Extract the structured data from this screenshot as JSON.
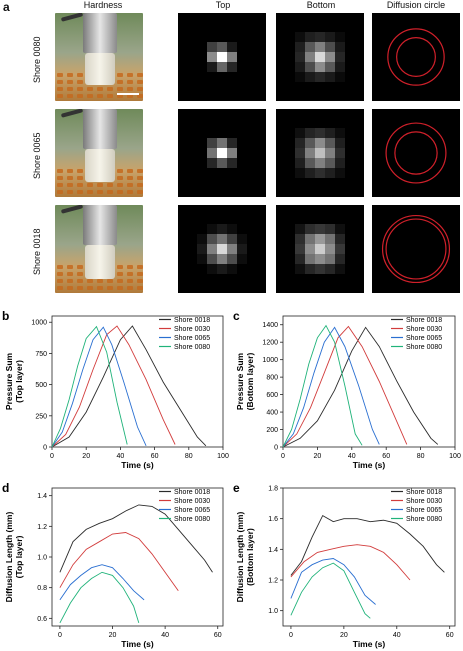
{
  "panel_a": {
    "letter": "a",
    "headers": [
      "Hardness",
      "Top",
      "Bottom",
      "Diffusion circle"
    ],
    "rows": [
      {
        "label": "Shore 0080",
        "top": [
          [
            0,
            0,
            0,
            0,
            0
          ],
          [
            0,
            0.25,
            0.35,
            0.1,
            0
          ],
          [
            0,
            0.55,
            1.0,
            0.5,
            0
          ],
          [
            0,
            0.1,
            0.4,
            0.15,
            0
          ],
          [
            0,
            0,
            0,
            0,
            0
          ]
        ],
        "bottom": [
          [
            0.05,
            0.12,
            0.15,
            0.1,
            0.04
          ],
          [
            0.12,
            0.35,
            0.5,
            0.3,
            0.1
          ],
          [
            0.15,
            0.5,
            0.85,
            0.55,
            0.15
          ],
          [
            0.1,
            0.3,
            0.55,
            0.35,
            0.1
          ],
          [
            0.04,
            0.1,
            0.15,
            0.1,
            0.04
          ]
        ],
        "circles": [
          0.22,
          0.32
        ]
      },
      {
        "label": "Shore 0065",
        "top": [
          [
            0,
            0,
            0,
            0,
            0
          ],
          [
            0,
            0.25,
            0.45,
            0.15,
            0
          ],
          [
            0,
            0.45,
            1.0,
            0.5,
            0
          ],
          [
            0,
            0.15,
            0.35,
            0.15,
            0
          ],
          [
            0,
            0,
            0,
            0,
            0
          ]
        ],
        "bottom": [
          [
            0.06,
            0.14,
            0.18,
            0.12,
            0.05
          ],
          [
            0.14,
            0.35,
            0.55,
            0.35,
            0.12
          ],
          [
            0.18,
            0.5,
            0.75,
            0.5,
            0.18
          ],
          [
            0.12,
            0.35,
            0.5,
            0.35,
            0.12
          ],
          [
            0.05,
            0.12,
            0.18,
            0.12,
            0.05
          ]
        ],
        "circles": [
          0.24,
          0.34
        ]
      },
      {
        "label": "Shore 0018",
        "top": [
          [
            0,
            0.05,
            0.1,
            0.05,
            0
          ],
          [
            0.05,
            0.3,
            0.45,
            0.25,
            0.05
          ],
          [
            0.1,
            0.5,
            0.85,
            0.5,
            0.1
          ],
          [
            0.05,
            0.3,
            0.5,
            0.3,
            0.05
          ],
          [
            0,
            0.05,
            0.1,
            0.05,
            0
          ]
        ],
        "bottom": [
          [
            0.08,
            0.18,
            0.22,
            0.18,
            0.06
          ],
          [
            0.18,
            0.45,
            0.6,
            0.45,
            0.15
          ],
          [
            0.22,
            0.55,
            0.8,
            0.55,
            0.22
          ],
          [
            0.15,
            0.45,
            0.55,
            0.45,
            0.15
          ],
          [
            0.06,
            0.15,
            0.2,
            0.15,
            0.06
          ]
        ],
        "circles": [
          0.34,
          0.38
        ]
      }
    ],
    "scale_bar": true,
    "circle_color": "#d0202a"
  },
  "series_names": [
    "Shore 0018",
    "Shore 0030",
    "Shore 0065",
    "Shore 0080"
  ],
  "series_colors": [
    "#2b2b2b",
    "#d23c3c",
    "#2a6fd1",
    "#20b37a"
  ],
  "chart_data": [
    {
      "id": "b",
      "letter": "b",
      "type": "line",
      "ylabel": "Pressure Sum\n(Top layer)",
      "xlabel": "Time (s)",
      "xlim": [
        0,
        100
      ],
      "ylim": [
        0,
        1050
      ],
      "xticks": [
        0,
        20,
        40,
        60,
        80,
        100
      ],
      "yticks": [
        0,
        250,
        500,
        750,
        1000
      ],
      "series": [
        {
          "name": "Shore 0018",
          "x": [
            0,
            10,
            20,
            30,
            40,
            47,
            55,
            65,
            75,
            85,
            90
          ],
          "y": [
            0,
            80,
            280,
            560,
            860,
            970,
            780,
            520,
            300,
            80,
            10
          ]
        },
        {
          "name": "Shore 0030",
          "x": [
            0,
            8,
            16,
            24,
            32,
            38,
            45,
            55,
            65,
            72
          ],
          "y": [
            0,
            100,
            320,
            620,
            900,
            970,
            820,
            540,
            220,
            20
          ]
        },
        {
          "name": "Shore 0065",
          "x": [
            0,
            6,
            12,
            18,
            24,
            30,
            35,
            42,
            50,
            55
          ],
          "y": [
            0,
            120,
            350,
            620,
            860,
            960,
            820,
            520,
            160,
            10
          ]
        },
        {
          "name": "Shore 0080",
          "x": [
            0,
            5,
            10,
            15,
            20,
            26,
            32,
            38,
            44
          ],
          "y": [
            0,
            150,
            380,
            650,
            870,
            965,
            760,
            360,
            20
          ]
        }
      ]
    },
    {
      "id": "c",
      "letter": "c",
      "type": "line",
      "ylabel": "Pressure Sum\n(Bottom layer)",
      "xlabel": "Time (s)",
      "xlim": [
        0,
        100
      ],
      "ylim": [
        0,
        1500
      ],
      "xticks": [
        0,
        20,
        40,
        60,
        80,
        100
      ],
      "yticks": [
        0,
        200,
        400,
        600,
        800,
        1000,
        1200,
        1400
      ],
      "series": [
        {
          "name": "Shore 0018",
          "x": [
            0,
            10,
            20,
            30,
            40,
            48,
            56,
            66,
            76,
            86,
            90
          ],
          "y": [
            0,
            100,
            300,
            650,
            1100,
            1370,
            1150,
            760,
            400,
            100,
            30
          ]
        },
        {
          "name": "Shore 0030",
          "x": [
            0,
            8,
            16,
            24,
            32,
            38,
            46,
            56,
            66,
            72
          ],
          "y": [
            0,
            150,
            450,
            850,
            1250,
            1380,
            1150,
            750,
            300,
            30
          ]
        },
        {
          "name": "Shore 0065",
          "x": [
            0,
            6,
            12,
            18,
            24,
            30,
            36,
            44,
            52,
            56
          ],
          "y": [
            0,
            150,
            450,
            850,
            1200,
            1370,
            1150,
            700,
            200,
            30
          ]
        },
        {
          "name": "Shore 0080",
          "x": [
            0,
            5,
            10,
            15,
            20,
            25,
            30,
            36,
            42,
            46
          ],
          "y": [
            0,
            200,
            550,
            950,
            1250,
            1390,
            1200,
            700,
            150,
            20
          ]
        }
      ]
    },
    {
      "id": "d",
      "letter": "d",
      "type": "line",
      "ylabel": "Diffusion Length (mm)\n(Top layer)",
      "xlabel": "Time (s)",
      "xlim": [
        -3,
        62
      ],
      "ylim": [
        0.55,
        1.45
      ],
      "xticks": [
        0,
        20,
        40,
        60
      ],
      "yticks": [
        0.6,
        0.8,
        1.0,
        1.2,
        1.4
      ],
      "series": [
        {
          "name": "Shore 0018",
          "x": [
            0,
            5,
            10,
            15,
            20,
            25,
            30,
            35,
            40,
            45,
            50,
            55,
            58
          ],
          "y": [
            0.9,
            1.1,
            1.18,
            1.22,
            1.25,
            1.3,
            1.34,
            1.33,
            1.28,
            1.18,
            1.08,
            0.98,
            0.9
          ]
        },
        {
          "name": "Shore 0030",
          "x": [
            0,
            5,
            10,
            15,
            20,
            25,
            30,
            35,
            40,
            45
          ],
          "y": [
            0.8,
            0.95,
            1.05,
            1.1,
            1.15,
            1.16,
            1.12,
            1.02,
            0.9,
            0.78
          ]
        },
        {
          "name": "Shore 0065",
          "x": [
            0,
            4,
            8,
            12,
            16,
            20,
            24,
            28,
            32
          ],
          "y": [
            0.72,
            0.82,
            0.88,
            0.93,
            0.95,
            0.93,
            0.86,
            0.78,
            0.72
          ]
        },
        {
          "name": "Shore 0080",
          "x": [
            0,
            4,
            8,
            12,
            16,
            20,
            24,
            28,
            30
          ],
          "y": [
            0.57,
            0.7,
            0.8,
            0.86,
            0.9,
            0.88,
            0.8,
            0.68,
            0.57
          ]
        }
      ]
    },
    {
      "id": "e",
      "letter": "e",
      "type": "line",
      "ylabel": "Diffusion Length (mm)\n(Bottom layer)",
      "xlabel": "Time (s)",
      "xlim": [
        -3,
        62
      ],
      "ylim": [
        0.9,
        1.8
      ],
      "xticks": [
        0,
        20,
        40,
        60
      ],
      "yticks": [
        1.0,
        1.2,
        1.4,
        1.6,
        1.8
      ],
      "series": [
        {
          "name": "Shore 0018",
          "x": [
            0,
            4,
            8,
            12,
            16,
            20,
            25,
            30,
            35,
            40,
            45,
            50,
            55,
            58
          ],
          "y": [
            1.23,
            1.32,
            1.48,
            1.62,
            1.58,
            1.6,
            1.6,
            1.58,
            1.59,
            1.57,
            1.5,
            1.42,
            1.3,
            1.25
          ]
        },
        {
          "name": "Shore 0030",
          "x": [
            0,
            5,
            10,
            15,
            20,
            25,
            30,
            35,
            40,
            45
          ],
          "y": [
            1.22,
            1.32,
            1.38,
            1.4,
            1.42,
            1.43,
            1.42,
            1.38,
            1.3,
            1.2
          ]
        },
        {
          "name": "Shore 0065",
          "x": [
            0,
            4,
            8,
            12,
            16,
            20,
            24,
            28,
            32
          ],
          "y": [
            1.08,
            1.25,
            1.3,
            1.33,
            1.34,
            1.3,
            1.22,
            1.1,
            1.04
          ]
        },
        {
          "name": "Shore 0080",
          "x": [
            0,
            4,
            8,
            12,
            16,
            20,
            24,
            28,
            30
          ],
          "y": [
            0.97,
            1.12,
            1.22,
            1.28,
            1.31,
            1.26,
            1.12,
            0.98,
            0.95
          ]
        }
      ]
    }
  ]
}
